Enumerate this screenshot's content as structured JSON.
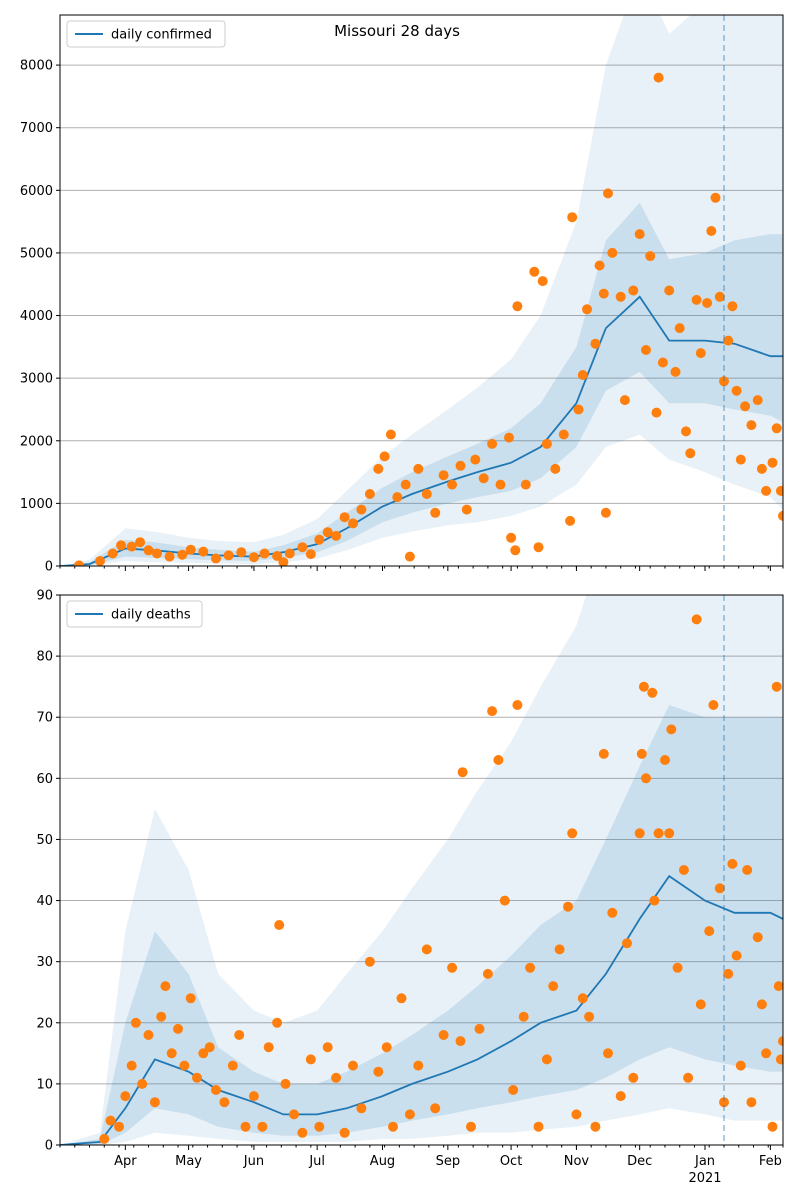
{
  "chart_data": [
    {
      "type": "line",
      "title": "Missouri 28 days",
      "legend": {
        "label": "daily confirmed",
        "placement": "top-left"
      },
      "ylim": [
        0,
        8800
      ],
      "yticks": [
        0,
        1000,
        2000,
        3000,
        4000,
        5000,
        6000,
        7000,
        8000
      ],
      "xrange": [
        "2020-03-01",
        "2021-02-07"
      ],
      "grid": "horizontal",
      "vline": "2021-01-10",
      "colors": {
        "line": "#1f77b4",
        "dots": "#ff7f0e",
        "band": "#1f77b4"
      },
      "series": [
        {
          "name": "daily confirmed",
          "x": [
            "2020-03-01",
            "2020-03-15",
            "2020-04-01",
            "2020-04-15",
            "2020-05-01",
            "2020-05-15",
            "2020-06-01",
            "2020-06-15",
            "2020-07-01",
            "2020-07-15",
            "2020-08-01",
            "2020-08-15",
            "2020-09-01",
            "2020-09-15",
            "2020-10-01",
            "2020-10-15",
            "2020-11-01",
            "2020-11-15",
            "2020-12-01",
            "2020-12-15",
            "2021-01-01",
            "2021-01-15",
            "2021-02-01",
            "2021-02-07"
          ],
          "values": [
            0,
            30,
            280,
            250,
            200,
            170,
            150,
            220,
            350,
            600,
            950,
            1150,
            1350,
            1500,
            1650,
            1900,
            2600,
            3800,
            4300,
            3600,
            3600,
            3550,
            3350,
            3350
          ]
        }
      ],
      "band_inner": {
        "lower": [
          0,
          10,
          150,
          130,
          110,
          90,
          80,
          130,
          220,
          400,
          700,
          850,
          1000,
          1100,
          1200,
          1400,
          1900,
          2800,
          3100,
          2600,
          2600,
          2500,
          2400,
          2300
        ],
        "upper": [
          0,
          60,
          420,
          380,
          300,
          260,
          230,
          330,
          520,
          850,
          1250,
          1500,
          1750,
          1950,
          2200,
          2600,
          3500,
          5200,
          5800,
          4900,
          5000,
          5200,
          5300,
          5300
        ]
      },
      "band_outer": {
        "lower": [
          0,
          0,
          80,
          60,
          50,
          40,
          30,
          60,
          120,
          250,
          450,
          550,
          650,
          700,
          800,
          950,
          1300,
          1900,
          2100,
          1700,
          1500,
          1300,
          1100,
          900
        ],
        "upper": [
          0,
          100,
          600,
          550,
          450,
          400,
          380,
          500,
          750,
          1200,
          1750,
          2100,
          2500,
          2850,
          3300,
          4000,
          5500,
          8000,
          9500,
          8500,
          9000,
          9500,
          10000,
          10000
        ]
      },
      "observed": [
        [
          "2020-03-10",
          10
        ],
        [
          "2020-03-20",
          80
        ],
        [
          "2020-03-26",
          200
        ],
        [
          "2020-03-30",
          330
        ],
        [
          "2020-04-04",
          310
        ],
        [
          "2020-04-08",
          380
        ],
        [
          "2020-04-12",
          250
        ],
        [
          "2020-04-16",
          200
        ],
        [
          "2020-04-22",
          150
        ],
        [
          "2020-04-28",
          180
        ],
        [
          "2020-05-02",
          260
        ],
        [
          "2020-05-08",
          230
        ],
        [
          "2020-05-14",
          120
        ],
        [
          "2020-05-20",
          170
        ],
        [
          "2020-05-26",
          220
        ],
        [
          "2020-06-01",
          140
        ],
        [
          "2020-06-06",
          200
        ],
        [
          "2020-06-12",
          160
        ],
        [
          "2020-06-15",
          60
        ],
        [
          "2020-06-18",
          200
        ],
        [
          "2020-06-24",
          300
        ],
        [
          "2020-06-28",
          190
        ],
        [
          "2020-07-02",
          420
        ],
        [
          "2020-07-06",
          540
        ],
        [
          "2020-07-10",
          480
        ],
        [
          "2020-07-14",
          780
        ],
        [
          "2020-07-18",
          680
        ],
        [
          "2020-07-22",
          900
        ],
        [
          "2020-07-26",
          1150
        ],
        [
          "2020-07-30",
          1550
        ],
        [
          "2020-08-02",
          1750
        ],
        [
          "2020-08-05",
          2100
        ],
        [
          "2020-08-08",
          1100
        ],
        [
          "2020-08-12",
          1300
        ],
        [
          "2020-08-14",
          150
        ],
        [
          "2020-08-18",
          1550
        ],
        [
          "2020-08-22",
          1150
        ],
        [
          "2020-08-26",
          850
        ],
        [
          "2020-08-30",
          1450
        ],
        [
          "2020-09-03",
          1300
        ],
        [
          "2020-09-07",
          1600
        ],
        [
          "2020-09-10",
          900
        ],
        [
          "2020-09-14",
          1700
        ],
        [
          "2020-09-18",
          1400
        ],
        [
          "2020-09-22",
          1950
        ],
        [
          "2020-09-26",
          1300
        ],
        [
          "2020-09-30",
          2050
        ],
        [
          "2020-10-01",
          450
        ],
        [
          "2020-10-03",
          250
        ],
        [
          "2020-10-04",
          4150
        ],
        [
          "2020-10-08",
          1300
        ],
        [
          "2020-10-12",
          4700
        ],
        [
          "2020-10-14",
          300
        ],
        [
          "2020-10-16",
          4550
        ],
        [
          "2020-10-18",
          1950
        ],
        [
          "2020-10-22",
          1550
        ],
        [
          "2020-10-26",
          2100
        ],
        [
          "2020-10-30",
          5570
        ],
        [
          "2020-10-29",
          720
        ],
        [
          "2020-11-02",
          2500
        ],
        [
          "2020-11-04",
          3050
        ],
        [
          "2020-11-06",
          4100
        ],
        [
          "2020-11-10",
          3550
        ],
        [
          "2020-11-12",
          4800
        ],
        [
          "2020-11-14",
          4350
        ],
        [
          "2020-11-16",
          5950
        ],
        [
          "2020-11-15",
          850
        ],
        [
          "2020-11-18",
          5000
        ],
        [
          "2020-11-22",
          4300
        ],
        [
          "2020-11-24",
          2650
        ],
        [
          "2020-11-28",
          4400
        ],
        [
          "2020-12-01",
          5300
        ],
        [
          "2020-12-04",
          3450
        ],
        [
          "2020-12-06",
          4950
        ],
        [
          "2020-12-09",
          2450
        ],
        [
          "2020-12-10",
          7800
        ],
        [
          "2020-12-12",
          3250
        ],
        [
          "2020-12-15",
          4400
        ],
        [
          "2020-12-18",
          3100
        ],
        [
          "2020-12-20",
          3800
        ],
        [
          "2020-12-23",
          2150
        ],
        [
          "2020-12-25",
          1800
        ],
        [
          "2020-12-28",
          4250
        ],
        [
          "2020-12-30",
          3400
        ],
        [
          "2021-01-02",
          4200
        ],
        [
          "2021-01-04",
          5350
        ],
        [
          "2021-01-06",
          5880
        ],
        [
          "2021-01-08",
          4300
        ],
        [
          "2021-01-10",
          2950
        ],
        [
          "2021-01-12",
          3600
        ],
        [
          "2021-01-14",
          4150
        ],
        [
          "2021-01-16",
          2800
        ],
        [
          "2021-01-18",
          1700
        ],
        [
          "2021-01-20",
          2550
        ],
        [
          "2021-01-23",
          2250
        ],
        [
          "2021-01-26",
          2650
        ],
        [
          "2021-01-28",
          1550
        ],
        [
          "2021-01-30",
          1200
        ],
        [
          "2021-02-02",
          1650
        ],
        [
          "2021-02-04",
          2200
        ],
        [
          "2021-02-06",
          1200
        ],
        [
          "2021-02-07",
          800
        ]
      ]
    },
    {
      "type": "line",
      "title": "",
      "legend": {
        "label": "daily deaths",
        "placement": "top-left"
      },
      "ylim": [
        0,
        90
      ],
      "yticks": [
        0,
        10,
        20,
        30,
        40,
        50,
        60,
        70,
        80,
        90
      ],
      "xrange": [
        "2020-03-01",
        "2021-02-07"
      ],
      "xticks": [
        "Apr",
        "May",
        "Jun",
        "Jul",
        "Aug",
        "Sep",
        "Oct",
        "Nov",
        "Dec",
        "Jan",
        "Feb"
      ],
      "xtick_dates": [
        "2020-04-01",
        "2020-05-01",
        "2020-06-01",
        "2020-07-01",
        "2020-08-01",
        "2020-09-01",
        "2020-10-01",
        "2020-11-01",
        "2020-12-01",
        "2021-01-01",
        "2021-02-01"
      ],
      "x_secondary_label": "2021",
      "grid": "horizontal",
      "vline": "2021-01-10",
      "colors": {
        "line": "#1f77b4",
        "dots": "#ff7f0e",
        "band": "#1f77b4"
      },
      "series": [
        {
          "name": "daily deaths",
          "x": [
            "2020-03-01",
            "2020-03-20",
            "2020-04-01",
            "2020-04-15",
            "2020-05-01",
            "2020-05-15",
            "2020-06-01",
            "2020-06-15",
            "2020-07-01",
            "2020-07-15",
            "2020-08-01",
            "2020-08-15",
            "2020-09-01",
            "2020-09-15",
            "2020-10-01",
            "2020-10-15",
            "2020-11-01",
            "2020-11-15",
            "2020-12-01",
            "2020-12-15",
            "2021-01-01",
            "2021-01-15",
            "2021-02-01",
            "2021-02-07"
          ],
          "values": [
            0,
            0.5,
            6,
            14,
            12,
            9,
            7,
            5,
            5,
            6,
            8,
            10,
            12,
            14,
            17,
            20,
            22,
            28,
            37,
            44,
            40,
            38,
            38,
            37
          ]
        }
      ],
      "band_inner": {
        "lower": [
          0,
          0,
          2,
          6,
          5,
          3,
          2,
          1.5,
          1.5,
          2,
          3,
          4,
          5,
          6,
          7,
          8,
          9,
          11,
          14,
          16,
          14,
          13,
          12,
          12
        ],
        "upper": [
          0,
          1,
          20,
          35,
          28,
          16,
          12,
          10,
          10,
          12,
          15,
          18,
          22,
          26,
          31,
          36,
          40,
          50,
          62,
          72,
          70,
          70,
          70,
          70
        ]
      },
      "band_outer": {
        "lower": [
          0,
          0,
          0.5,
          2,
          1.5,
          1,
          0.5,
          0.5,
          0.5,
          0.5,
          1,
          1,
          1.5,
          2,
          2,
          2.5,
          3,
          4,
          5,
          6,
          5,
          4,
          4,
          4
        ],
        "upper": [
          0,
          2,
          35,
          55,
          45,
          28,
          22,
          20,
          22,
          28,
          35,
          42,
          50,
          58,
          66,
          75,
          85,
          100,
          120,
          130,
          130,
          130,
          130,
          130
        ]
      },
      "observed": [
        [
          "2020-03-22",
          1
        ],
        [
          "2020-03-25",
          4
        ],
        [
          "2020-03-29",
          3
        ],
        [
          "2020-04-01",
          8
        ],
        [
          "2020-04-04",
          13
        ],
        [
          "2020-04-06",
          20
        ],
        [
          "2020-04-09",
          10
        ],
        [
          "2020-04-12",
          18
        ],
        [
          "2020-04-15",
          7
        ],
        [
          "2020-04-18",
          21
        ],
        [
          "2020-04-20",
          26
        ],
        [
          "2020-04-23",
          15
        ],
        [
          "2020-04-26",
          19
        ],
        [
          "2020-04-29",
          13
        ],
        [
          "2020-05-02",
          24
        ],
        [
          "2020-05-05",
          11
        ],
        [
          "2020-05-08",
          15
        ],
        [
          "2020-05-11",
          16
        ],
        [
          "2020-05-14",
          9
        ],
        [
          "2020-05-18",
          7
        ],
        [
          "2020-05-22",
          13
        ],
        [
          "2020-05-25",
          18
        ],
        [
          "2020-05-28",
          3
        ],
        [
          "2020-06-01",
          8
        ],
        [
          "2020-06-05",
          3
        ],
        [
          "2020-06-08",
          16
        ],
        [
          "2020-06-12",
          20
        ],
        [
          "2020-06-13",
          36
        ],
        [
          "2020-06-16",
          10
        ],
        [
          "2020-06-20",
          5
        ],
        [
          "2020-06-24",
          2
        ],
        [
          "2020-06-28",
          14
        ],
        [
          "2020-07-02",
          3
        ],
        [
          "2020-07-06",
          16
        ],
        [
          "2020-07-10",
          11
        ],
        [
          "2020-07-14",
          2
        ],
        [
          "2020-07-18",
          13
        ],
        [
          "2020-07-22",
          6
        ],
        [
          "2020-07-26",
          30
        ],
        [
          "2020-07-30",
          12
        ],
        [
          "2020-08-03",
          16
        ],
        [
          "2020-08-06",
          3
        ],
        [
          "2020-08-10",
          24
        ],
        [
          "2020-08-14",
          5
        ],
        [
          "2020-08-18",
          13
        ],
        [
          "2020-08-22",
          32
        ],
        [
          "2020-08-26",
          6
        ],
        [
          "2020-08-30",
          18
        ],
        [
          "2020-09-03",
          29
        ],
        [
          "2020-09-07",
          17
        ],
        [
          "2020-09-08",
          61
        ],
        [
          "2020-09-12",
          3
        ],
        [
          "2020-09-16",
          19
        ],
        [
          "2020-09-20",
          28
        ],
        [
          "2020-09-22",
          71
        ],
        [
          "2020-09-25",
          63
        ],
        [
          "2020-09-28",
          40
        ],
        [
          "2020-10-02",
          9
        ],
        [
          "2020-10-04",
          72
        ],
        [
          "2020-10-07",
          21
        ],
        [
          "2020-10-10",
          29
        ],
        [
          "2020-10-14",
          3
        ],
        [
          "2020-10-18",
          14
        ],
        [
          "2020-10-21",
          26
        ],
        [
          "2020-10-24",
          32
        ],
        [
          "2020-10-28",
          39
        ],
        [
          "2020-10-30",
          51
        ],
        [
          "2020-11-01",
          5
        ],
        [
          "2020-11-04",
          24
        ],
        [
          "2020-11-07",
          21
        ],
        [
          "2020-11-10",
          3
        ],
        [
          "2020-11-14",
          64
        ],
        [
          "2020-11-16",
          15
        ],
        [
          "2020-11-18",
          38
        ],
        [
          "2020-11-22",
          8
        ],
        [
          "2020-11-25",
          33
        ],
        [
          "2020-11-28",
          11
        ],
        [
          "2020-12-01",
          51
        ],
        [
          "2020-12-02",
          64
        ],
        [
          "2020-12-03",
          75
        ],
        [
          "2020-12-04",
          60
        ],
        [
          "2020-12-07",
          74
        ],
        [
          "2020-12-08",
          40
        ],
        [
          "2020-12-10",
          51
        ],
        [
          "2020-12-13",
          63
        ],
        [
          "2020-12-15",
          51
        ],
        [
          "2020-12-16",
          68
        ],
        [
          "2020-12-19",
          29
        ],
        [
          "2020-12-22",
          45
        ],
        [
          "2020-12-24",
          11
        ],
        [
          "2020-12-28",
          86
        ],
        [
          "2020-12-30",
          23
        ],
        [
          "2021-01-03",
          35
        ],
        [
          "2021-01-05",
          72
        ],
        [
          "2021-01-08",
          42
        ],
        [
          "2021-01-10",
          7
        ],
        [
          "2021-01-12",
          28
        ],
        [
          "2021-01-14",
          46
        ],
        [
          "2021-01-16",
          31
        ],
        [
          "2021-01-18",
          13
        ],
        [
          "2021-01-21",
          45
        ],
        [
          "2021-01-23",
          7
        ],
        [
          "2021-01-26",
          34
        ],
        [
          "2021-01-28",
          23
        ],
        [
          "2021-01-30",
          15
        ],
        [
          "2021-02-02",
          3
        ],
        [
          "2021-02-04",
          75
        ],
        [
          "2021-02-05",
          26
        ],
        [
          "2021-02-06",
          14
        ],
        [
          "2021-02-07",
          17
        ]
      ]
    }
  ]
}
